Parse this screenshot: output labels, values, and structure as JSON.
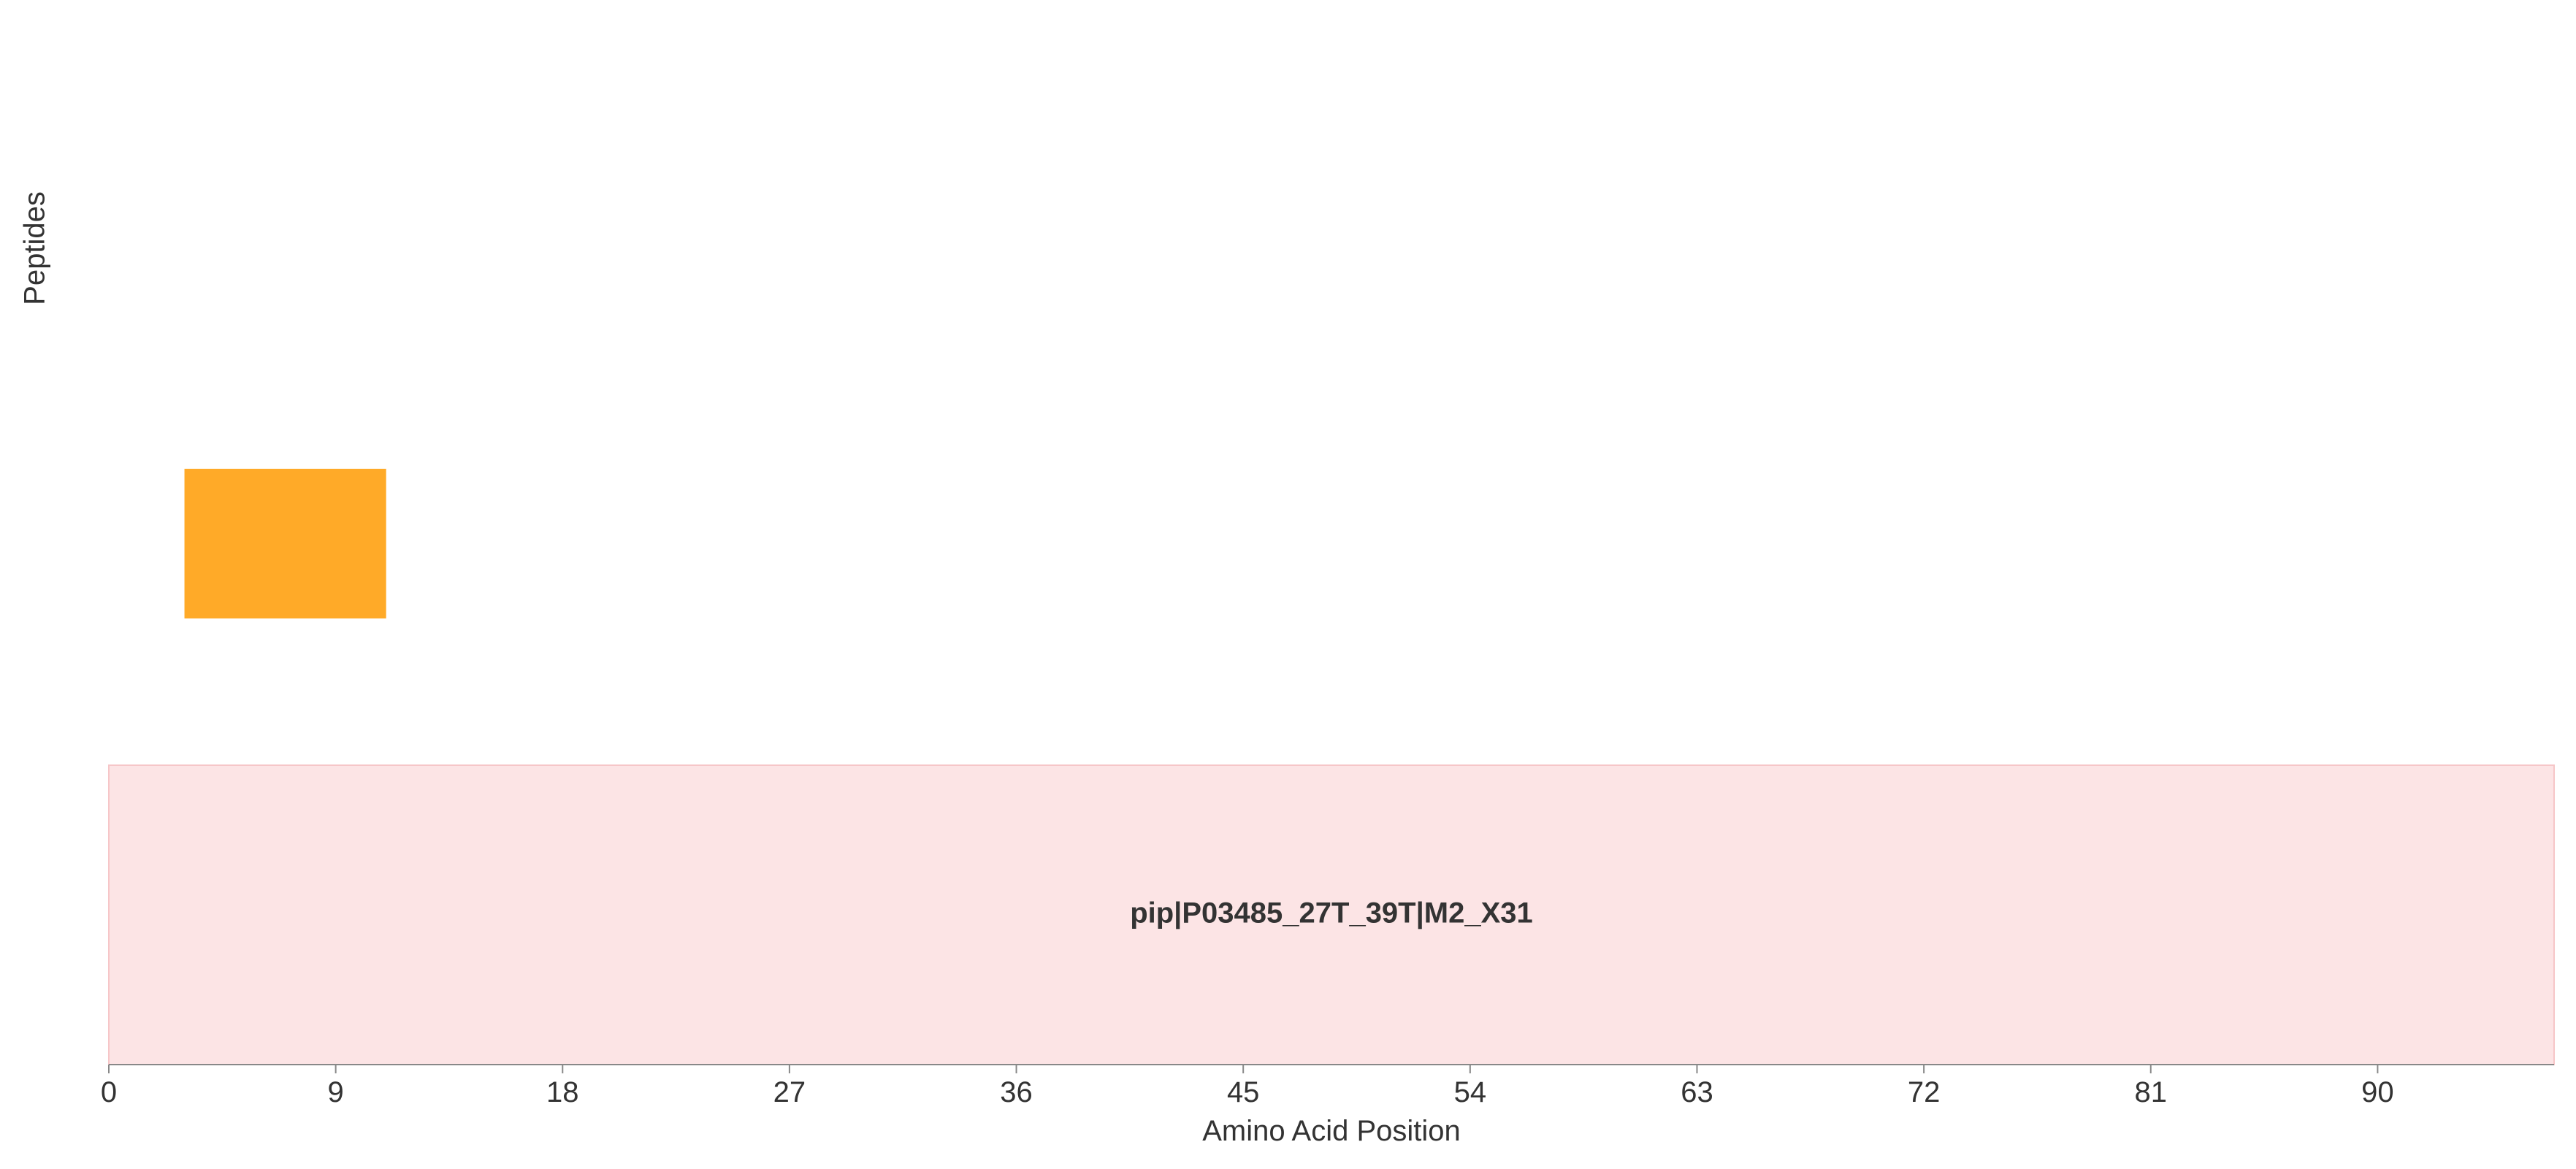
{
  "chart_data": {
    "type": "bar",
    "orientation": "horizontal-ranges",
    "xlabel": "Amino Acid Position",
    "ylabel": "Peptides",
    "xlim": [
      0,
      97
    ],
    "xticks": [
      0,
      9,
      18,
      27,
      36,
      45,
      54,
      63,
      72,
      81,
      90
    ],
    "grid": false,
    "peptides": [
      {
        "start": 3,
        "end": 11,
        "color": "#FFAA28"
      }
    ],
    "protein": {
      "label": "pip|P03485_27T_39T|M2_X31",
      "start": 0,
      "end": 97,
      "fill": "#FCE4E5",
      "stroke": "#F6C6C8"
    },
    "axis_color": "#888888",
    "text_color": "#333333"
  }
}
